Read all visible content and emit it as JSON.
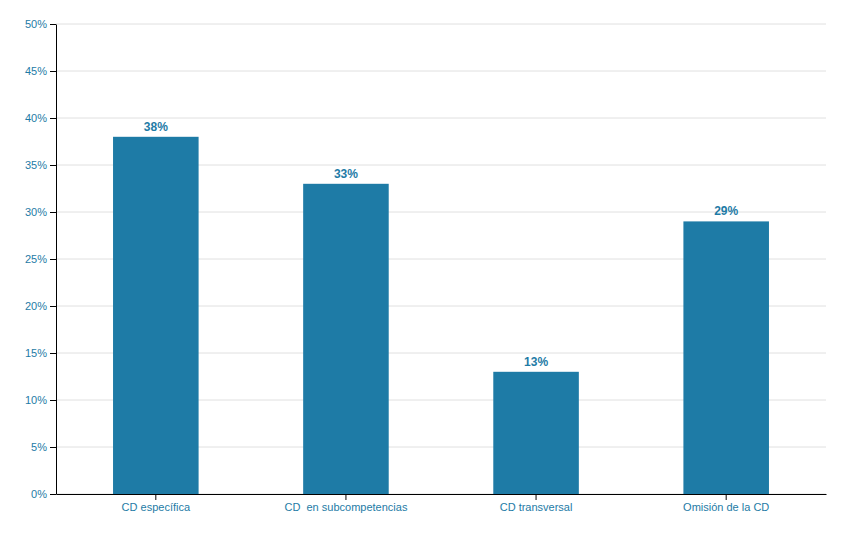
{
  "chart_data": {
    "type": "bar",
    "categories": [
      "CD específica",
      "CD  en subcompetencias",
      "CD transversal",
      "Omisión de la CD"
    ],
    "values": [
      38,
      33,
      13,
      29
    ],
    "value_labels": [
      "38%",
      "33%",
      "13%",
      "29%"
    ],
    "data_labels": true,
    "color": "#1e7ba6",
    "ylim": [
      0,
      50
    ],
    "yticks": [
      {
        "value": 0,
        "label": "0%"
      },
      {
        "value": 5,
        "label": "5%"
      },
      {
        "value": 10,
        "label": "10%"
      },
      {
        "value": 15,
        "label": "15%"
      },
      {
        "value": 20,
        "label": "20%"
      },
      {
        "value": 25,
        "label": "25%"
      },
      {
        "value": 30,
        "label": "30%"
      },
      {
        "value": 35,
        "label": "35%"
      },
      {
        "value": 40,
        "label": "40%"
      },
      {
        "value": 45,
        "label": "45%"
      },
      {
        "value": 50,
        "label": "50%"
      }
    ],
    "grid": true
  }
}
